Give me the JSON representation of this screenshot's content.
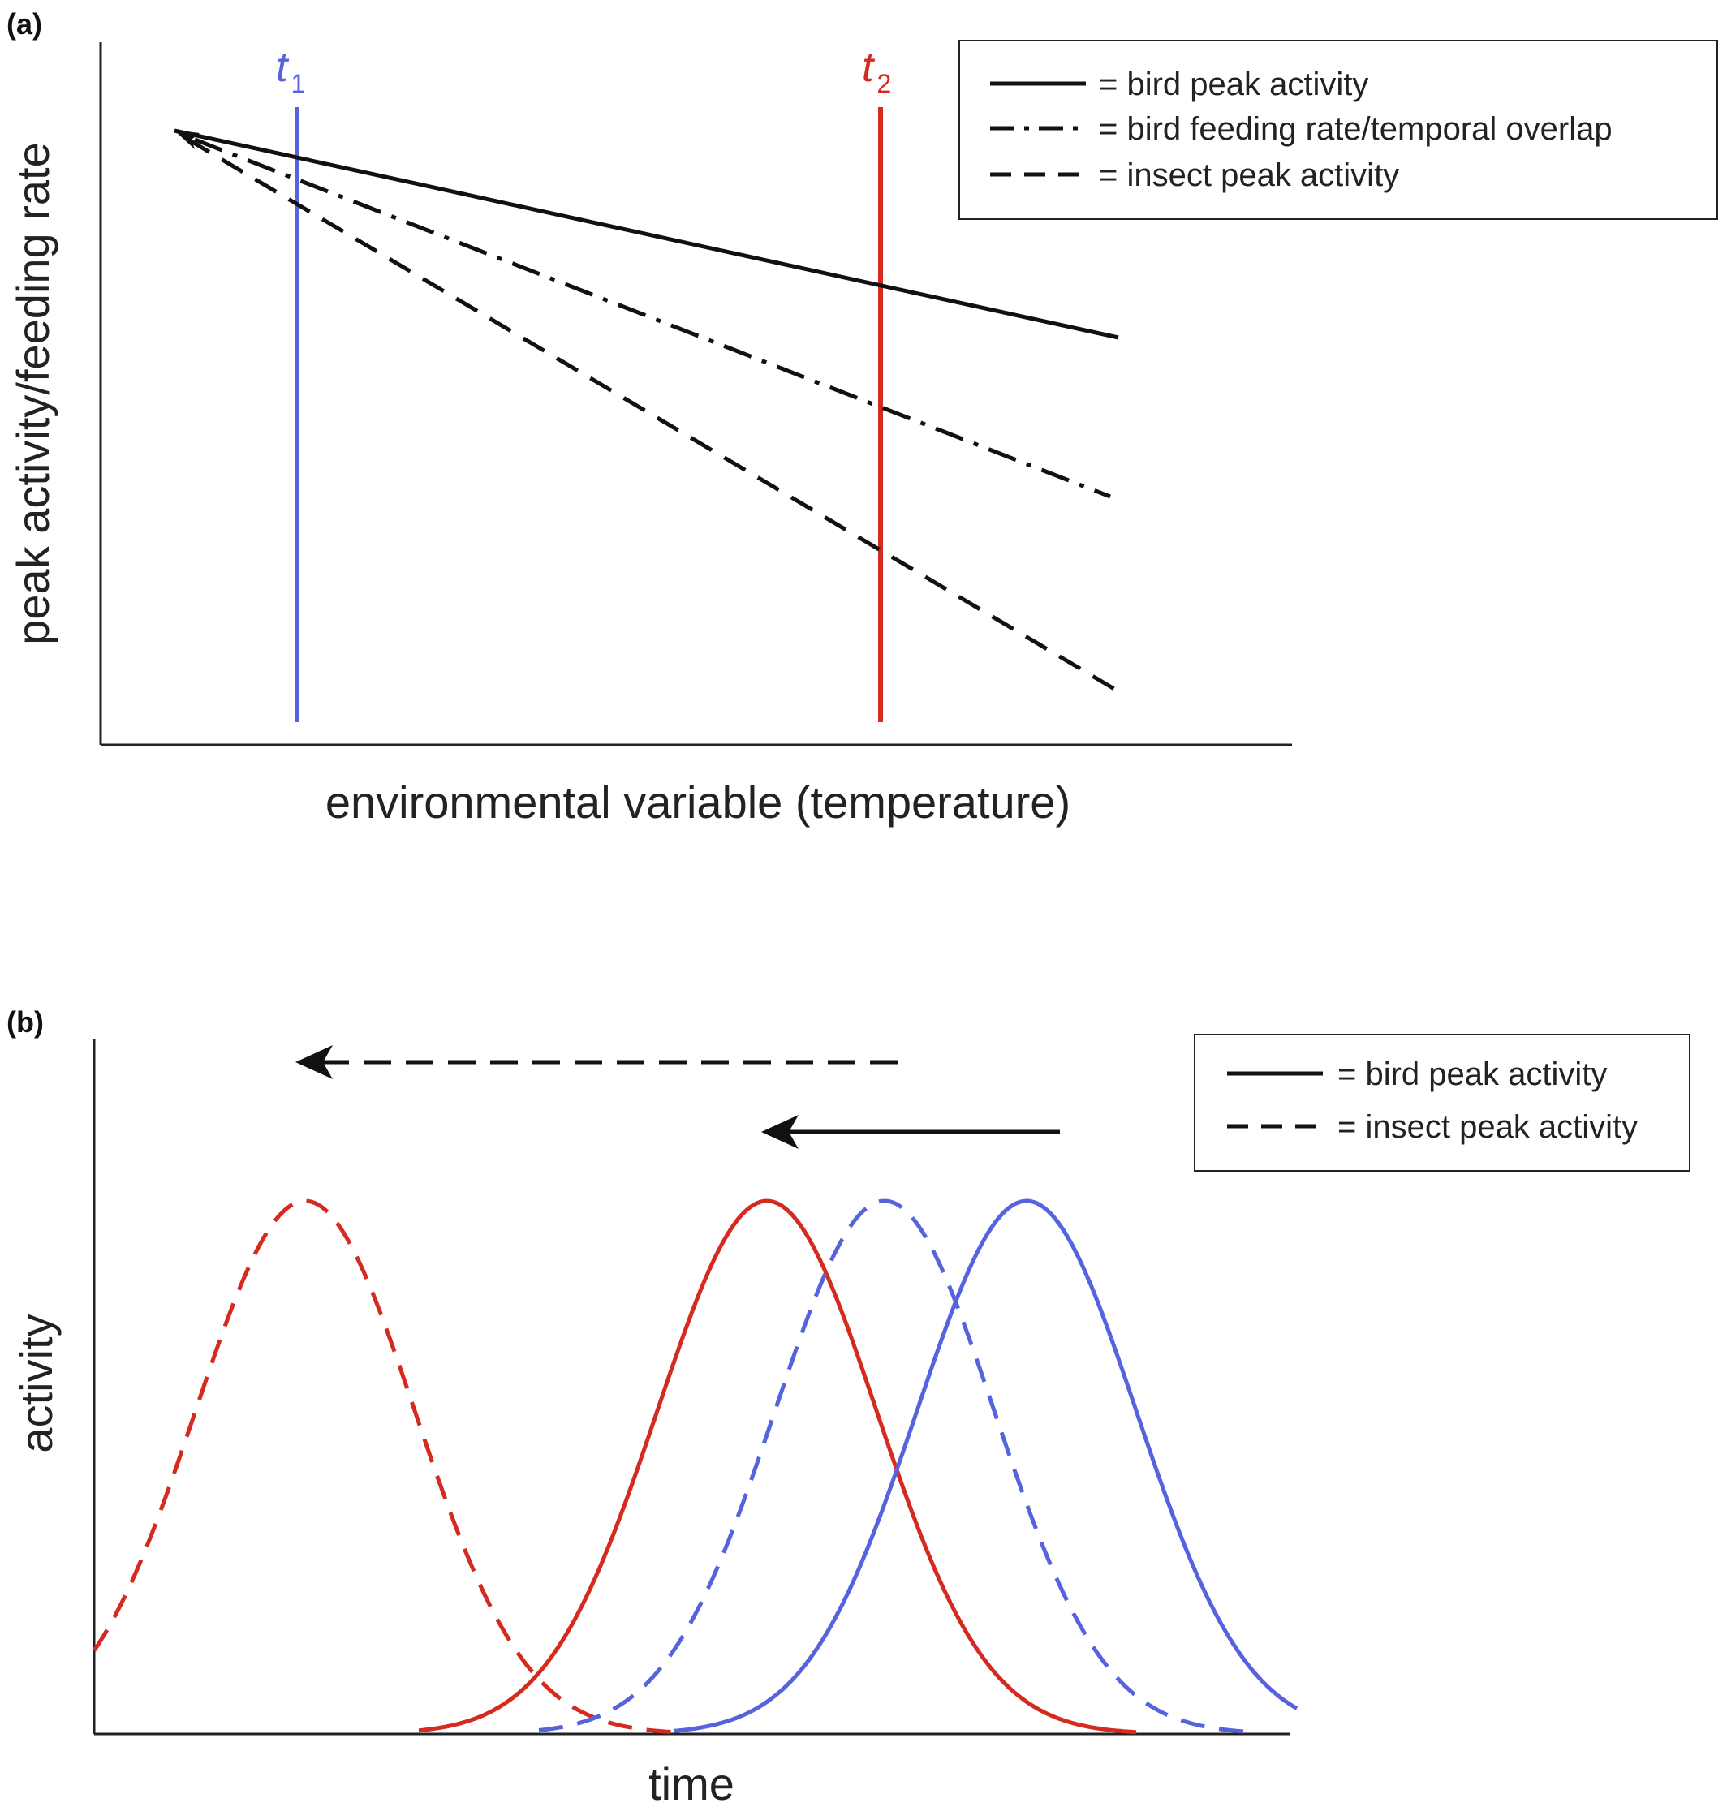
{
  "panel_a": {
    "label": "(a)",
    "ylabel": "peak activity/feeding rate",
    "xlabel": "environmental variable (temperature)",
    "t1": {
      "letter": "t",
      "sub": "1",
      "color": "#5563de"
    },
    "t2": {
      "letter": "t",
      "sub": "2",
      "color": "#d42a1f"
    },
    "legend": [
      {
        "style": "solid",
        "text": "= bird peak activity"
      },
      {
        "style": "dashdot",
        "text": "= bird feeding rate/temporal overlap"
      },
      {
        "style": "dashed",
        "text": "= insect peak activity"
      }
    ]
  },
  "panel_b": {
    "label": "(b)",
    "ylabel": "activity",
    "xlabel": "time",
    "legend": [
      {
        "style": "solid",
        "text": "= bird peak activity"
      },
      {
        "style": "dashed",
        "text": "= insect peak activity"
      }
    ]
  },
  "colors": {
    "blue": "#5563de",
    "red": "#d42a1f",
    "black": "#111111"
  }
}
